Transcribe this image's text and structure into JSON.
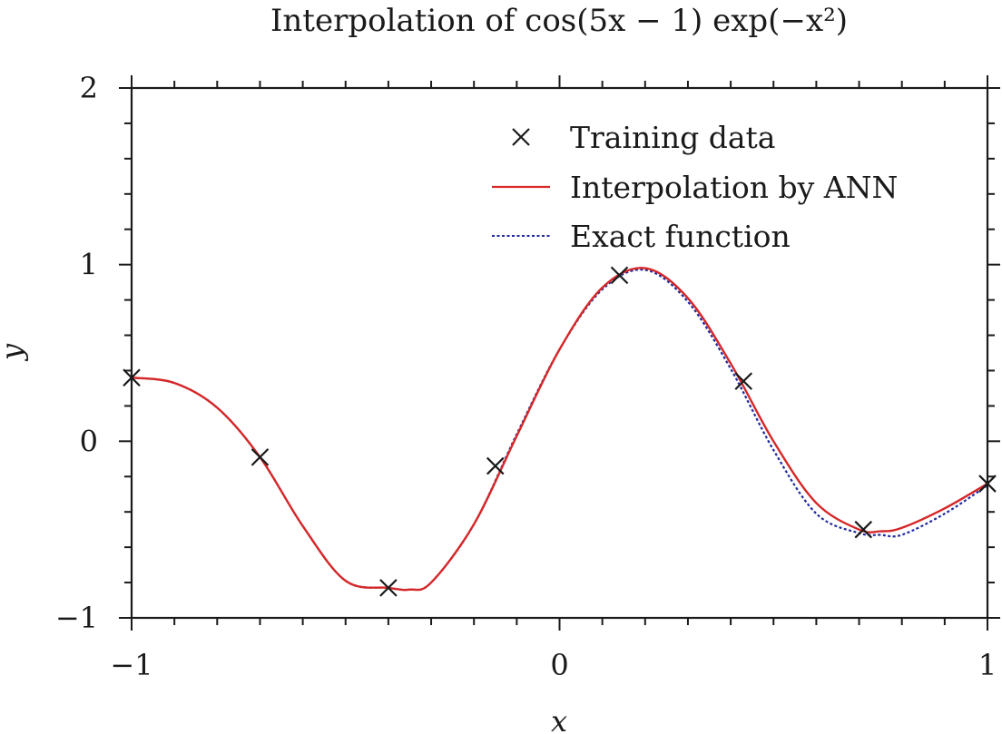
{
  "chart_data": {
    "type": "line",
    "title": "Interpolation of cos(5x − 1) exp(−x²)",
    "xlabel": "x",
    "ylabel": "y",
    "xlim": [
      -1,
      1
    ],
    "ylim": [
      -1,
      2
    ],
    "x_ticks": [
      -1,
      0,
      1
    ],
    "y_ticks": [
      -1,
      0,
      1,
      2
    ],
    "x_tick_labels": [
      "−1",
      "0",
      "1"
    ],
    "y_tick_labels": [
      "−1",
      "0",
      "1",
      "2"
    ],
    "x_minor_step": 0.1,
    "y_minor_step": 0.2,
    "grid": false,
    "legend_position": "top-right",
    "legend": {
      "training": "Training data",
      "interp": "Interpolation by ANN",
      "exact": "Exact function"
    },
    "series": [
      {
        "name": "Training data",
        "style": "markers-x",
        "color": "#1a1a1a",
        "x": [
          -1.0,
          -0.7,
          -0.4,
          -0.15,
          0.14,
          0.43,
          0.71,
          1.0
        ],
        "y": [
          0.36,
          -0.09,
          -0.83,
          -0.14,
          0.94,
          0.34,
          -0.5,
          -0.24
        ]
      },
      {
        "name": "Interpolation by ANN",
        "style": "solid",
        "color": "#d62728",
        "x": [
          -1.0,
          -0.9,
          -0.8,
          -0.7,
          -0.6,
          -0.5,
          -0.4,
          -0.35,
          -0.3,
          -0.2,
          -0.1,
          0.0,
          0.1,
          0.2,
          0.3,
          0.4,
          0.5,
          0.6,
          0.7,
          0.75,
          0.8,
          0.9,
          1.0
        ],
        "y": [
          0.36,
          0.33,
          0.19,
          -0.09,
          -0.48,
          -0.79,
          -0.83,
          -0.84,
          -0.8,
          -0.47,
          0.03,
          0.52,
          0.87,
          0.98,
          0.81,
          0.44,
          0.0,
          -0.35,
          -0.5,
          -0.51,
          -0.49,
          -0.38,
          -0.24
        ]
      },
      {
        "name": "Exact function",
        "style": "dotted",
        "color": "#1f2a9e",
        "x": [
          -1.0,
          -0.9,
          -0.8,
          -0.7,
          -0.6,
          -0.5,
          -0.4,
          -0.35,
          -0.3,
          -0.2,
          -0.1,
          0.0,
          0.1,
          0.2,
          0.3,
          0.4,
          0.5,
          0.6,
          0.7,
          0.75,
          0.8,
          0.9,
          1.0
        ],
        "y": [
          0.36,
          0.33,
          0.19,
          -0.09,
          -0.48,
          -0.79,
          -0.83,
          -0.84,
          -0.8,
          -0.47,
          0.04,
          0.52,
          0.86,
          0.97,
          0.79,
          0.41,
          -0.05,
          -0.41,
          -0.52,
          -0.53,
          -0.53,
          -0.41,
          -0.25
        ]
      }
    ]
  }
}
